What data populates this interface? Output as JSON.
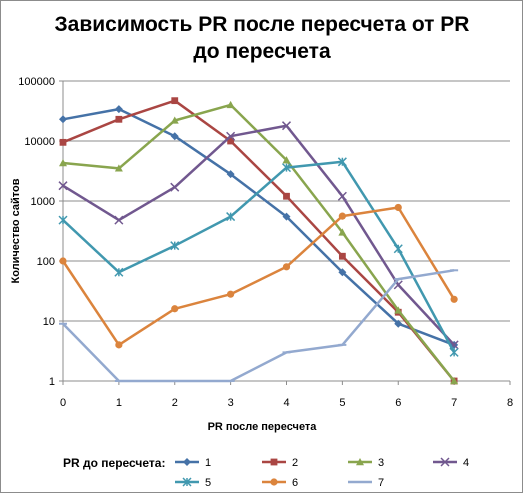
{
  "chart_data": {
    "type": "line",
    "title_lines": [
      "Зависимость PR после пересчета от PR",
      "до пересчета"
    ],
    "xlabel": "PR после пересчета",
    "ylabel": "Количество  сайтов",
    "xlim": [
      0,
      8
    ],
    "x_ticks": [
      "0",
      "1",
      "2",
      "3",
      "4",
      "5",
      "6",
      "7",
      "8"
    ],
    "y_scale": "log",
    "ylim": [
      1,
      100000
    ],
    "y_ticks": [
      "1",
      "10",
      "100",
      "1000",
      "10000",
      "100000"
    ],
    "grid": "horizontal",
    "legend_title": "PR до пересчета:",
    "legend_position": "bottom",
    "x": [
      0,
      1,
      2,
      3,
      4,
      5,
      6,
      7
    ],
    "series": [
      {
        "name": "1",
        "color": "#4572A7",
        "marker": "diamond",
        "values": [
          23000,
          34000,
          12000,
          2800,
          550,
          65,
          9,
          4
        ]
      },
      {
        "name": "2",
        "color": "#AA4643",
        "marker": "square",
        "values": [
          9500,
          23000,
          47000,
          10000,
          1200,
          120,
          14,
          1
        ]
      },
      {
        "name": "3",
        "color": "#89A54E",
        "marker": "triangle",
        "values": [
          4300,
          3500,
          22000,
          40000,
          4800,
          300,
          15,
          1
        ]
      },
      {
        "name": "4",
        "color": "#71588F",
        "marker": "x",
        "values": [
          1800,
          480,
          1700,
          12000,
          18000,
          1200,
          40,
          4
        ]
      },
      {
        "name": "5",
        "color": "#4198AF",
        "marker": "star",
        "values": [
          480,
          65,
          180,
          550,
          3600,
          4500,
          160,
          3
        ]
      },
      {
        "name": "6",
        "color": "#DB843D",
        "marker": "circle",
        "values": [
          100,
          4,
          16,
          28,
          80,
          560,
          780,
          23
        ]
      },
      {
        "name": "7",
        "color": "#93A9CF",
        "marker": "dash",
        "values": [
          9,
          1,
          1,
          1,
          3,
          4,
          50,
          70
        ]
      }
    ]
  }
}
